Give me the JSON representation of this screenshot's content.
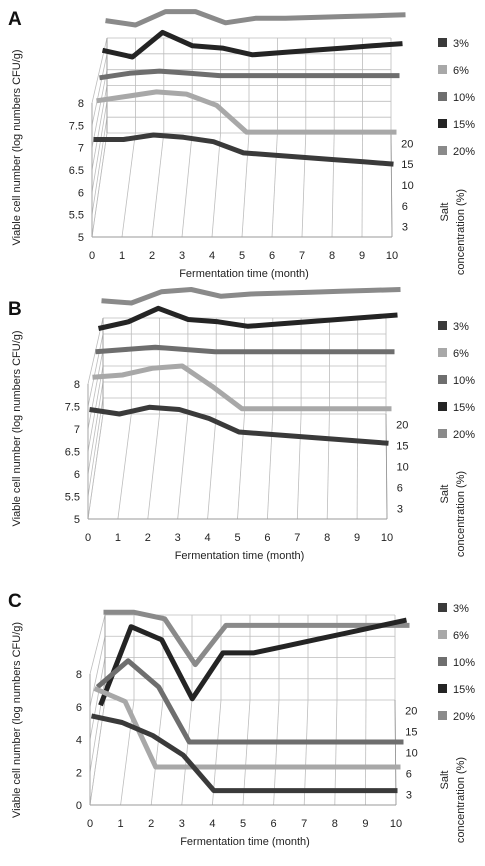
{
  "figure": {
    "panel_labels": [
      "A",
      "B",
      "C"
    ]
  },
  "chart_data": [
    {
      "type": "line",
      "panel": "A",
      "xlabel": "Fermentation time (month)",
      "ylabel": "Viable cell number (log numbers CFU/g)",
      "zlabel": "Salt concentration (%)",
      "x": [
        0,
        1,
        2,
        3,
        4,
        5,
        6,
        7,
        8,
        9,
        10
      ],
      "y_ticks": [
        "5",
        "5.5",
        "6",
        "6.5",
        "7",
        "7.5",
        "8"
      ],
      "ylim": [
        5,
        8
      ],
      "z_ticks": [
        "3",
        "6",
        "10",
        "15",
        "20"
      ],
      "series": [
        {
          "name": "3%",
          "color": "#3a3a3a",
          "values": [
            6.95,
            6.95,
            7.05,
            7.0,
            6.9,
            6.65,
            6.6,
            6.55,
            6.5,
            6.45,
            6.4
          ]
        },
        {
          "name": "6%",
          "color": "#a8a8a8",
          "values": [
            7.35,
            7.45,
            7.55,
            7.5,
            7.25,
            6.65,
            6.65,
            6.65,
            6.65,
            6.65,
            6.65
          ]
        },
        {
          "name": "10%",
          "color": "#6e6e6e",
          "values": [
            7.4,
            7.5,
            7.55,
            7.5,
            7.45,
            7.45,
            7.45,
            7.45,
            7.45,
            7.45,
            7.45
          ]
        },
        {
          "name": "15%",
          "color": "#242424",
          "values": [
            7.55,
            7.4,
            7.95,
            7.65,
            7.6,
            7.45,
            7.5,
            7.55,
            7.6,
            7.65,
            7.7
          ]
        },
        {
          "name": "20%",
          "color": "#8a8a8a",
          "values": [
            7.75,
            7.65,
            7.95,
            7.95,
            7.7,
            7.8,
            7.8,
            7.82,
            7.84,
            7.86,
            7.88
          ]
        }
      ]
    },
    {
      "type": "line",
      "panel": "B",
      "xlabel": "Fermentation time (month)",
      "ylabel": "Viable cell number (log numbers CFU/g)",
      "zlabel": "Salt concentration (%)",
      "x": [
        0,
        1,
        2,
        3,
        4,
        5,
        6,
        7,
        8,
        9,
        10
      ],
      "y_ticks": [
        "5",
        "5.5",
        "6",
        "6.5",
        "7",
        "7.5",
        "8"
      ],
      "ylim": [
        5,
        8
      ],
      "z_ticks": [
        "3",
        "6",
        "10",
        "15",
        "20"
      ],
      "series": [
        {
          "name": "3%",
          "color": "#3a3a3a",
          "values": [
            7.2,
            7.1,
            7.25,
            7.2,
            7.0,
            6.7,
            6.65,
            6.6,
            6.55,
            6.5,
            6.45
          ]
        },
        {
          "name": "6%",
          "color": "#a8a8a8",
          "values": [
            7.45,
            7.5,
            7.65,
            7.7,
            7.25,
            6.75,
            6.75,
            6.75,
            6.75,
            6.75,
            6.75
          ]
        },
        {
          "name": "10%",
          "color": "#6e6e6e",
          "values": [
            7.55,
            7.6,
            7.65,
            7.6,
            7.55,
            7.55,
            7.55,
            7.55,
            7.55,
            7.55,
            7.55
          ]
        },
        {
          "name": "15%",
          "color": "#242424",
          "values": [
            7.6,
            7.75,
            8.05,
            7.8,
            7.75,
            7.65,
            7.7,
            7.75,
            7.8,
            7.85,
            7.9
          ]
        },
        {
          "name": "20%",
          "color": "#8a8a8a",
          "values": [
            7.75,
            7.7,
            7.95,
            8.0,
            7.85,
            7.9,
            7.92,
            7.94,
            7.96,
            7.98,
            8.0
          ]
        }
      ]
    },
    {
      "type": "line",
      "panel": "C",
      "xlabel": "Fermentation time (month)",
      "ylabel": "Viable cell number (log numbers CFU/g)",
      "zlabel": "Salt concentration (%)",
      "x": [
        0,
        1,
        2,
        3,
        4,
        5,
        6,
        7,
        8,
        9,
        10
      ],
      "y_ticks": [
        "0",
        "2",
        "4",
        "6",
        "8"
      ],
      "ylim": [
        0,
        10
      ],
      "z_ticks": [
        "3",
        "6",
        "10",
        "15",
        "20"
      ],
      "series": [
        {
          "name": "3%",
          "color": "#3a3a3a",
          "values": [
            6.0,
            5.5,
            4.5,
            3.0,
            0.3,
            0.3,
            0.3,
            0.3,
            0.3,
            0.3,
            0.3
          ]
        },
        {
          "name": "6%",
          "color": "#a8a8a8",
          "values": [
            6.5,
            5.5,
            0.5,
            0.5,
            0.5,
            0.5,
            0.5,
            0.5,
            0.5,
            0.5,
            0.5
          ]
        },
        {
          "name": "10%",
          "color": "#6e6e6e",
          "values": [
            5.0,
            7.0,
            5.0,
            0.8,
            0.8,
            0.8,
            0.8,
            0.8,
            0.8,
            0.8,
            0.8
          ]
        },
        {
          "name": "15%",
          "color": "#242424",
          "values": [
            2.0,
            8.0,
            7.0,
            2.5,
            6.0,
            6.0,
            6.5,
            7.0,
            7.5,
            8.0,
            8.5
          ]
        },
        {
          "name": "20%",
          "color": "#8a8a8a",
          "values": [
            7.5,
            7.5,
            7.0,
            3.5,
            6.5,
            6.5,
            6.5,
            6.5,
            6.5,
            6.5,
            6.5
          ]
        }
      ]
    }
  ]
}
